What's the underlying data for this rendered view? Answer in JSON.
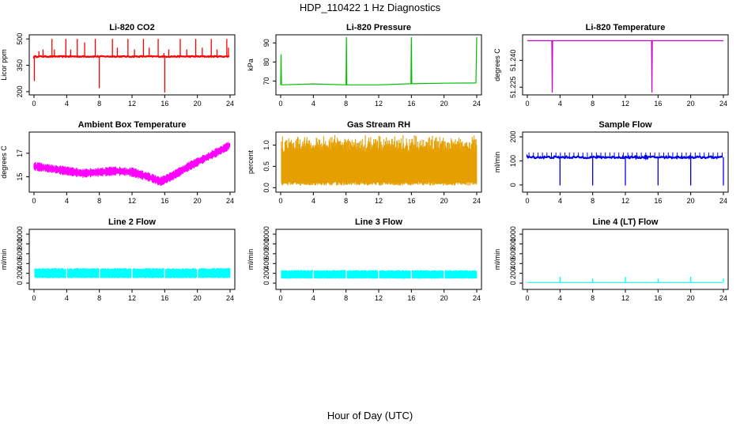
{
  "title": "HDP_110422 1 Hz Diagnostics",
  "xlabel": "Hour of Day (UTC)",
  "colors": {
    "co2": "#ff0000",
    "pressure": "#00c000",
    "temperature": "#cc00cc",
    "box_temp": "#ff00ff",
    "rh": "#e69f00",
    "sample_flow": "#0000ee",
    "line_flow": "#00ffff",
    "axis": "#000000"
  },
  "chart_data": [
    {
      "type": "line",
      "title": "Li-820 CO2",
      "ylabel": "Licor ppm",
      "xlim": [
        0,
        24
      ],
      "ylim": [
        195,
        510
      ],
      "x_ticks": [
        "0",
        "4",
        "8",
        "12",
        "16",
        "20",
        "24"
      ],
      "y_ticks": [
        "200",
        "350",
        "500"
      ],
      "series": [
        {
          "color": "#ff0000",
          "baseline": 400,
          "noise": 6,
          "spikes": [
            [
              0.05,
              260
            ],
            [
              0.6,
              430
            ],
            [
              1.1,
              440
            ],
            [
              2.2,
              500
            ],
            [
              2.5,
              440
            ],
            [
              3.9,
              500
            ],
            [
              4.5,
              440
            ],
            [
              5.3,
              500
            ],
            [
              6.2,
              480
            ],
            [
              7.5,
              500
            ],
            [
              8.0,
              220
            ],
            [
              9.6,
              500
            ],
            [
              10.2,
              450
            ],
            [
              11.5,
              500
            ],
            [
              12.3,
              440
            ],
            [
              13.4,
              500
            ],
            [
              14.1,
              450
            ],
            [
              15.2,
              500
            ],
            [
              15.9,
              420
            ],
            [
              16.0,
              195
            ],
            [
              16.5,
              440
            ],
            [
              17.9,
              500
            ],
            [
              18.7,
              440
            ],
            [
              19.8,
              500
            ],
            [
              20.6,
              450
            ],
            [
              21.7,
              500
            ],
            [
              22.4,
              440
            ],
            [
              23.6,
              500
            ],
            [
              23.8,
              450
            ]
          ]
        }
      ]
    },
    {
      "type": "line",
      "title": "Li-820 Pressure",
      "ylabel": "kPa",
      "xlim": [
        0,
        24
      ],
      "ylim": [
        64,
        93
      ],
      "x_ticks": [
        "0",
        "4",
        "8",
        "12",
        "16",
        "20",
        "24"
      ],
      "y_ticks": [
        "70",
        "80",
        "90"
      ],
      "series": [
        {
          "color": "#00c000",
          "points": [
            [
              0,
              68
            ],
            [
              0.05,
              84
            ],
            [
              0.1,
              68
            ],
            [
              4,
              68.5
            ],
            [
              8,
              68
            ],
            [
              8.05,
              93
            ],
            [
              8.1,
              68
            ],
            [
              12,
              68
            ],
            [
              15.95,
              68.6
            ],
            [
              16,
              93
            ],
            [
              16.05,
              68.6
            ],
            [
              20,
              68.9
            ],
            [
              23.9,
              69
            ],
            [
              24,
              93
            ]
          ]
        }
      ]
    },
    {
      "type": "line",
      "title": "Li-820 Temperature",
      "ylabel": "degrees C",
      "xlim": [
        0,
        24
      ],
      "ylim": [
        51.222,
        51.253
      ],
      "x_ticks": [
        "0",
        "4",
        "8",
        "12",
        "16",
        "20",
        "24"
      ],
      "y_ticks": [
        "51.225",
        "51.240"
      ],
      "series": [
        {
          "color": "#cc00cc",
          "points": [
            [
              0,
              51.251
            ],
            [
              3,
              51.251
            ],
            [
              3.05,
              51.222
            ],
            [
              3.1,
              51.251
            ],
            [
              15.2,
              51.251
            ],
            [
              15.25,
              51.222
            ],
            [
              15.3,
              51.251
            ],
            [
              24,
              51.251
            ]
          ]
        }
      ]
    },
    {
      "type": "line",
      "title": "Ambient Box Temperature",
      "ylabel": "degrees C",
      "xlim": [
        0,
        24
      ],
      "ylim": [
        13.9,
        18.6
      ],
      "x_ticks": [
        "0",
        "4",
        "8",
        "12",
        "16",
        "20",
        "24"
      ],
      "y_ticks": [
        "15",
        "17"
      ],
      "series": [
        {
          "color": "#ff00ff",
          "band": 0.8,
          "points": [
            [
              0,
              15.9
            ],
            [
              2,
              15.7
            ],
            [
              4,
              15.5
            ],
            [
              6,
              15.3
            ],
            [
              8,
              15.4
            ],
            [
              10,
              15.5
            ],
            [
              12,
              15.4
            ],
            [
              14,
              15.0
            ],
            [
              15.5,
              14.6
            ],
            [
              17,
              15.1
            ],
            [
              19,
              15.9
            ],
            [
              21,
              16.6
            ],
            [
              23,
              17.3
            ],
            [
              24,
              17.7
            ]
          ]
        }
      ]
    },
    {
      "type": "area",
      "title": "Gas Stream RH",
      "ylabel": "percent",
      "xlim": [
        0,
        24
      ],
      "ylim": [
        -0.05,
        1.25
      ],
      "x_ticks": [
        "0",
        "4",
        "8",
        "12",
        "16",
        "20",
        "24"
      ],
      "y_ticks": [
        "0.0",
        "0.5",
        "1.0"
      ],
      "series": [
        {
          "color": "#e69f00",
          "low": 0.05,
          "high": 1.1
        }
      ]
    },
    {
      "type": "line",
      "title": "Sample Flow",
      "ylabel": "ml/min",
      "xlim": [
        0,
        24
      ],
      "ylim": [
        -20,
        210
      ],
      "x_ticks": [
        "0",
        "4",
        "8",
        "12",
        "16",
        "20",
        "24"
      ],
      "y_ticks": [
        "0",
        "100",
        "200"
      ],
      "series": [
        {
          "color": "#0000ee",
          "baseline": 115,
          "dips": [
            4,
            8,
            12,
            16,
            20,
            24
          ]
        }
      ]
    },
    {
      "type": "area",
      "title": "Line 2 Flow",
      "ylabel": "ml/min",
      "xlim": [
        0,
        24
      ],
      "ylim": [
        -80,
        1050
      ],
      "x_ticks": [
        "0",
        "4",
        "8",
        "12",
        "16",
        "20",
        "24"
      ],
      "y_ticks": [
        "0",
        "200",
        "400",
        "600",
        "800",
        "1000"
      ],
      "series": [
        {
          "color": "#00ffff",
          "low": 100,
          "high": 310,
          "gaps": [
            4,
            8,
            12,
            16,
            20
          ]
        }
      ]
    },
    {
      "type": "area",
      "title": "Line 3 Flow",
      "ylabel": "ml/min",
      "xlim": [
        0,
        24
      ],
      "ylim": [
        -80,
        1050
      ],
      "x_ticks": [
        "0",
        "4",
        "8",
        "12",
        "16",
        "20",
        "24"
      ],
      "y_ticks": [
        "0",
        "200",
        "400",
        "600",
        "800",
        "1000"
      ],
      "series": [
        {
          "color": "#00ffff",
          "low": 90,
          "high": 270,
          "gaps": [
            4,
            8,
            12,
            16,
            20
          ]
        }
      ]
    },
    {
      "type": "line",
      "title": "Line 4 (LT) Flow",
      "ylabel": "ml/min",
      "xlim": [
        0,
        24
      ],
      "ylim": [
        -80,
        1050
      ],
      "x_ticks": [
        "0",
        "4",
        "8",
        "12",
        "16",
        "20",
        "24"
      ],
      "y_ticks": [
        "0",
        "200",
        "400",
        "600",
        "800",
        "1000"
      ],
      "series": [
        {
          "color": "#00ffff",
          "baseline": 10,
          "spikes": [
            [
              4,
              130
            ],
            [
              8,
              90
            ],
            [
              12,
              130
            ],
            [
              16,
              90
            ],
            [
              20,
              130
            ],
            [
              24,
              90
            ]
          ]
        }
      ]
    }
  ]
}
